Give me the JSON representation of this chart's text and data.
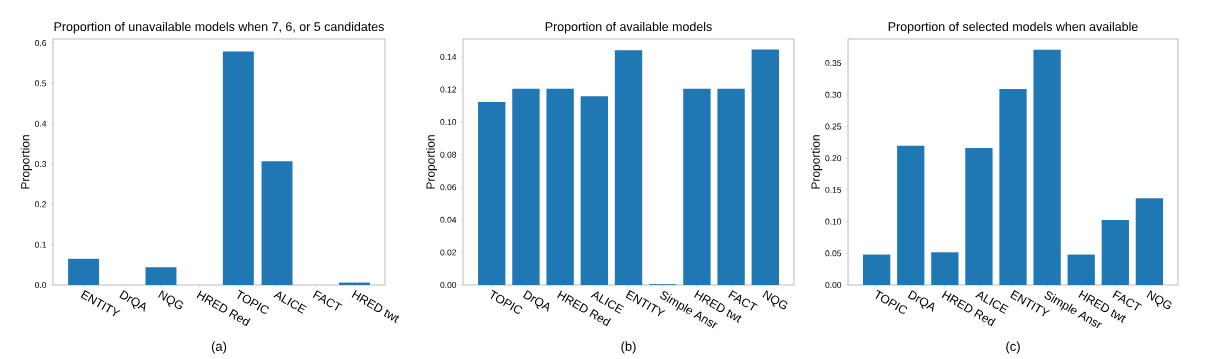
{
  "chart_data": [
    {
      "type": "bar",
      "title": "Proportion of unavailable models when 7, 6, or 5 candidates",
      "ylabel": "Proportion",
      "categories": [
        "ENTITY",
        "DrQA",
        "NQG",
        "HRED Red",
        "TOPIC",
        "ALICE",
        "FACT",
        "HRED twt"
      ],
      "values": [
        0.065,
        0,
        0.044,
        0,
        0.579,
        0.307,
        0,
        0.006
      ],
      "color": "#1f77b4",
      "ylim": [
        0,
        0.61
      ],
      "yticks": [
        {
          "value": 0,
          "label": "0.0"
        },
        0.1,
        0.2,
        0.3,
        0.4,
        0.5,
        0.6
      ],
      "annotations": [
        "(a)"
      ]
    },
    {
      "type": "bar",
      "title": "Proportion of available models",
      "ylabel": "Proportion",
      "categories": [
        "TOPIC",
        "DrQA",
        "HRED Red",
        "ALICE",
        "ENTITY",
        "Simple Ansr",
        "HRED twt",
        "FACT",
        "NQG"
      ],
      "values": [
        0.1123,
        0.1205,
        0.1205,
        0.1158,
        0.1441,
        0.0005,
        0.1205,
        0.1205,
        0.1445
      ],
      "color": "#1f77b4",
      "ylim": [
        0,
        0.151
      ],
      "yticks": [
        {
          "value": 0,
          "label": "0.00"
        },
        0.02,
        0.04,
        0.06,
        0.08,
        {
          "value": 0.1,
          "label": "0.10"
        },
        0.12,
        0.14
      ],
      "annotations": [
        "(b)"
      ]
    },
    {
      "type": "bar",
      "title": "Proportion of selected models when available",
      "ylabel": "Proportion",
      "categories": [
        "TOPIC",
        "DrQA",
        "HRED Red",
        "ALICE",
        "ENTITY",
        "Simple Ansr",
        "HRED twt",
        "FACT",
        "NQG"
      ],
      "values": [
        0.048,
        0.2195,
        0.0516,
        0.216,
        0.309,
        0.371,
        0.048,
        0.1026,
        0.137
      ],
      "color": "#1f77b4",
      "ylim": [
        0,
        0.388
      ],
      "yticks": [
        {
          "value": 0,
          "label": "0.00"
        },
        0.05,
        {
          "value": 0.1,
          "label": "0.10"
        },
        0.15,
        {
          "value": 0.2,
          "label": "0.20"
        },
        0.25,
        {
          "value": 0.3,
          "label": "0.30"
        },
        0.35
      ],
      "annotations": [
        "(c)"
      ]
    }
  ]
}
